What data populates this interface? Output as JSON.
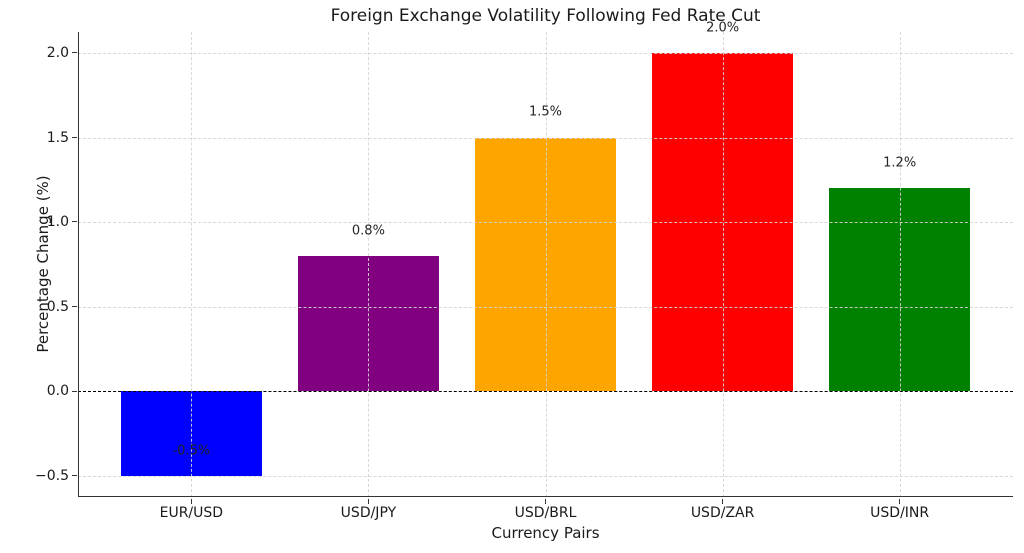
{
  "chart_data": {
    "type": "bar",
    "title": "Foreign Exchange Volatility Following Fed Rate Cut",
    "xlabel": "Currency Pairs",
    "ylabel": "Percentage Change (%)",
    "categories": [
      "EUR/USD",
      "USD/JPY",
      "USD/BRL",
      "USD/ZAR",
      "USD/INR"
    ],
    "values": [
      -0.5,
      0.8,
      1.5,
      2.0,
      1.2
    ],
    "bar_labels": [
      "-0.5%",
      "0.8%",
      "1.5%",
      "2.0%",
      "1.2%"
    ],
    "bar_colors": [
      "#0000ff",
      "#800080",
      "#ffa500",
      "#ff0000",
      "#008000"
    ],
    "bar_width_fraction": 0.8,
    "label_value_offset": 0.15,
    "ylim": [
      -0.625,
      2.125
    ],
    "yticks": [
      2.0,
      1.5,
      1.0,
      0.5,
      0.0,
      -0.5
    ],
    "ytick_labels": [
      "2.0",
      "1.5",
      "1.0",
      "0.5",
      "0.0",
      "−0.5"
    ],
    "grid": {
      "on": true,
      "axes": "both",
      "style": "dashed",
      "color": "#d4d4d4"
    },
    "zero_line": {
      "on": true,
      "style": "dashed",
      "color": "#000000"
    },
    "background": "#ffffff"
  }
}
